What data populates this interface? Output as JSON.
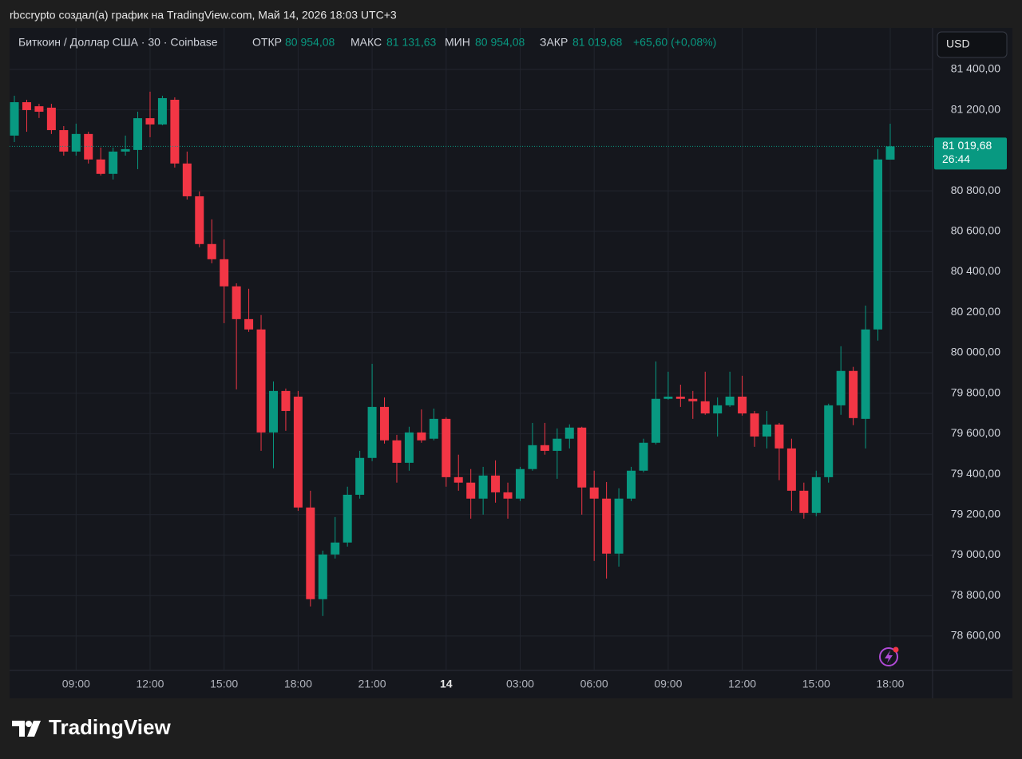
{
  "attribution": "rbccrypto создал(а) график на TradingView.com, Май 14, 2026 18:03 UTC+3",
  "footer_logo": "TradingView",
  "chart_data": {
    "type": "candlestick",
    "symbol": "Биткоин / Доллар США · 30 · Coinbase",
    "currency": "USD",
    "ohlc_header": {
      "open_label": "ОТКР",
      "open": "80 954,08",
      "high_label": "МАКС",
      "high": "81 131,63",
      "low_label": "МИН",
      "low": "80 954,08",
      "close_label": "ЗАКР",
      "close": "81 019,68",
      "change": "+65,60 (+0,08%)"
    },
    "last_price_label": "81 019,68",
    "countdown": "26:44",
    "categories": [
      null,
      null,
      null,
      null,
      null,
      "09:00",
      null,
      null,
      null,
      null,
      null,
      "12:00",
      null,
      null,
      null,
      null,
      null,
      "15:00",
      null,
      null,
      null,
      null,
      null,
      "18:00",
      null,
      null,
      null,
      null,
      null,
      "21:00",
      null,
      null,
      null,
      null,
      null,
      "14",
      null,
      null,
      null,
      null,
      null,
      "03:00",
      null,
      null,
      null,
      null,
      null,
      "06:00",
      null,
      null,
      null,
      null,
      null,
      "09:00",
      null,
      null,
      null,
      null,
      null,
      "12:00",
      null,
      null,
      null,
      null,
      null,
      "15:00",
      null,
      null,
      null,
      null,
      null,
      "18:00"
    ],
    "open": [
      81073,
      81238,
      81218,
      81211,
      81100,
      80994,
      81081,
      80955,
      80884,
      80994,
      81002,
      81159,
      81128,
      81250,
      80935,
      80773,
      80537,
      80462,
      80328,
      80166,
      80115,
      79606,
      79811,
      79783,
      79235,
      78782,
      79003,
      79062,
      79298,
      79480,
      79732,
      79567,
      79456,
      79606,
      79575,
      79673,
      79385,
      79358,
      79279,
      79393,
      79310,
      79279,
      79425,
      79543,
      79515,
      79575,
      79630,
      79334,
      79279,
      79007,
      79279,
      79417,
      79555,
      79772,
      79783,
      79772,
      79760,
      79700,
      79740,
      79783,
      79700,
      79586,
      79645,
      79527,
      79318,
      79208,
      79385,
      79740,
      79910,
      79673,
      80115,
      80954.08
    ],
    "high": [
      81270,
      81250,
      81230,
      81230,
      81120,
      81132,
      81092,
      81014,
      81014,
      81073,
      81191,
      81290,
      81270,
      81262,
      80994,
      80797,
      80659,
      80560,
      80343,
      80316,
      80186,
      79858,
      79823,
      79811,
      79318,
      79022,
      79188,
      79338,
      79515,
      79945,
      79779,
      79594,
      79634,
      79720,
      79724,
      79681,
      79496,
      79425,
      79436,
      79468,
      79358,
      79436,
      79653,
      79653,
      79626,
      79646,
      79634,
      79417,
      79361,
      79330,
      79436,
      79575,
      79957,
      79906,
      79842,
      79811,
      79906,
      79779,
      79906,
      79886,
      79712,
      79712,
      79653,
      79575,
      79358,
      79417,
      79748,
      80032,
      79930,
      80233,
      81006,
      81131.63
    ],
    "low": [
      81041,
      81092,
      81160,
      81081,
      80974,
      80974,
      80935,
      80876,
      80856,
      80974,
      80907,
      81065,
      81124,
      80915,
      80757,
      80521,
      80442,
      80146,
      79819,
      80103,
      79515,
      79429,
      79614,
      79219,
      78746,
      78699,
      78983,
      79042,
      79279,
      79464,
      79551,
      79358,
      79417,
      79555,
      79567,
      79338,
      79318,
      79180,
      79200,
      79259,
      79180,
      79267,
      79417,
      79496,
      79377,
      79527,
      79200,
      78971,
      78884,
      78943,
      79267,
      79409,
      79547,
      79768,
      79732,
      79673,
      79693,
      79586,
      79732,
      79689,
      79535,
      79527,
      79370,
      79219,
      79180,
      79192,
      79358,
      79693,
      79642,
      79527,
      80060,
      80954.08
    ],
    "close": [
      81238,
      81199,
      81191,
      81100,
      80994,
      81081,
      80955,
      80884,
      80994,
      81006,
      81159,
      81128,
      81258,
      80935,
      80773,
      80537,
      80462,
      80328,
      80166,
      80115,
      79606,
      79811,
      79712,
      79235,
      78782,
      79003,
      79062,
      79298,
      79480,
      79732,
      79567,
      79456,
      79606,
      79567,
      79673,
      79385,
      79358,
      79279,
      79393,
      79310,
      79279,
      79425,
      79543,
      79515,
      79575,
      79630,
      79334,
      79279,
      79007,
      79279,
      79417,
      79555,
      79772,
      79783,
      79772,
      79760,
      79700,
      79740,
      79783,
      79700,
      79586,
      79645,
      79527,
      79318,
      79208,
      79385,
      79740,
      79910,
      79677,
      80115,
      80955,
      81019.68
    ],
    "up_color": "#089981",
    "down_color": "#f23645",
    "ylim": [
      78430,
      81605
    ],
    "yticks": [
      {
        "value": 78600,
        "label": "78 600,00"
      },
      {
        "value": 78800,
        "label": "78 800,00"
      },
      {
        "value": 79000,
        "label": "79 000,00"
      },
      {
        "value": 79200,
        "label": "79 200,00"
      },
      {
        "value": 79400,
        "label": "79 400,00"
      },
      {
        "value": 79600,
        "label": "79 600,00"
      },
      {
        "value": 79800,
        "label": "79 800,00"
      },
      {
        "value": 80000,
        "label": "80 000,00"
      },
      {
        "value": 80200,
        "label": "80 200,00"
      },
      {
        "value": 80400,
        "label": "80 400,00"
      },
      {
        "value": 80600,
        "label": "80 600,00"
      },
      {
        "value": 80800,
        "label": "80 800,00"
      },
      {
        "value": 81200,
        "label": "81 200,00"
      },
      {
        "value": 81400,
        "label": "81 400,00"
      }
    ],
    "grid": true
  }
}
